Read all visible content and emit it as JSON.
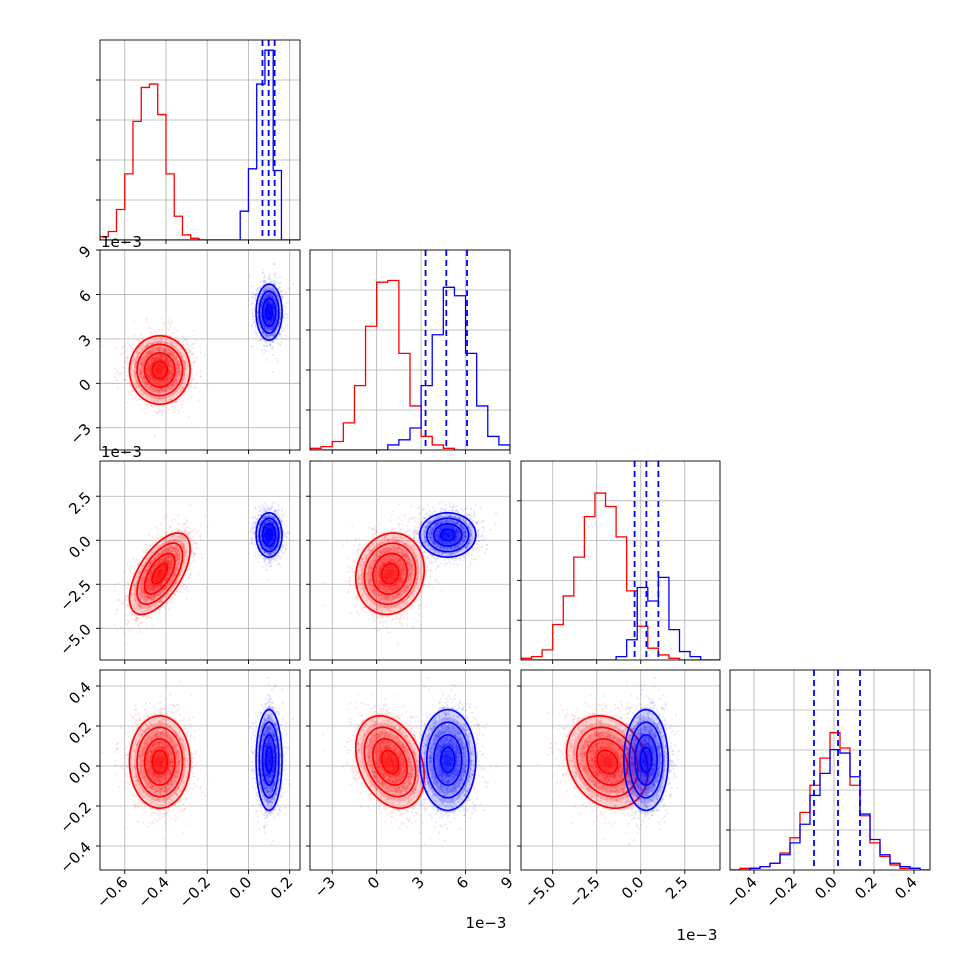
{
  "chart_data": {
    "type": "corner",
    "parameters": 4,
    "grid": true,
    "series_colors": {
      "A": "#ff0000",
      "B": "#0000ff"
    },
    "quantile_line_color": "#0000ff",
    "axes": [
      {
        "range": [
          -0.72,
          0.25
        ],
        "ticks": [
          -0.6,
          -0.4,
          -0.2,
          0.0,
          0.2
        ],
        "tick_labels": [
          "−0.6",
          "−0.4",
          "−0.2",
          "0.0",
          "0.2"
        ],
        "offset_label": ""
      },
      {
        "range": [
          -0.0045,
          0.009
        ],
        "ticks": [
          -0.003,
          0.0,
          0.003,
          0.006,
          0.009
        ],
        "tick_labels": [
          "−3",
          "0",
          "3",
          "6",
          "9"
        ],
        "offset_label": "1e−3"
      },
      {
        "range": [
          -0.0068,
          0.0045
        ],
        "ticks": [
          -0.005,
          -0.0025,
          0.0,
          0.0025
        ],
        "tick_labels": [
          "−5.0",
          "−2.5",
          "0.0",
          "2.5"
        ],
        "offset_label": "1e−3"
      },
      {
        "range": [
          -0.52,
          0.48
        ],
        "ticks": [
          -0.4,
          -0.2,
          0.0,
          0.2,
          0.4
        ],
        "tick_labels": [
          "−0.4",
          "−0.2",
          "0.0",
          "0.2",
          "0.4"
        ],
        "offset_label": ""
      }
    ],
    "distributions": {
      "A": {
        "mean": [
          -0.43,
          0.0009,
          -0.0019,
          0.02
        ],
        "sd": [
          0.07,
          0.0011,
          0.0011,
          0.11
        ],
        "corr": [
          [
            1,
            0,
            0.6,
            0
          ],
          [
            0,
            1,
            0.1,
            -0.3
          ],
          [
            0.6,
            0.1,
            1,
            -0.2
          ],
          [
            0,
            -0.3,
            -0.2,
            1
          ]
        ]
      },
      "B": {
        "mean": [
          0.1,
          0.0048,
          0.0003,
          0.03
        ],
        "sd": [
          0.03,
          0.0009,
          0.0006,
          0.12
        ],
        "corr": [
          [
            1,
            0,
            0,
            0
          ],
          [
            0,
            1,
            0,
            0
          ],
          [
            0,
            0,
            1,
            0
          ],
          [
            0,
            0,
            0,
            1
          ]
        ]
      }
    },
    "histograms": [
      {
        "bin_edges": [
          -0.72,
          -0.68,
          -0.64,
          -0.6,
          -0.56,
          -0.52,
          -0.48,
          -0.44,
          -0.4,
          -0.36,
          -0.32,
          -0.28,
          -0.24,
          -0.2,
          -0.16,
          -0.12,
          -0.08,
          -0.04,
          0.0,
          0.04,
          0.08,
          0.12,
          0.16,
          0.2,
          0.25
        ],
        "A": [
          0.02,
          0.05,
          0.18,
          0.39,
          0.7,
          0.9,
          0.92,
          0.74,
          0.39,
          0.14,
          0.03,
          0.01,
          0,
          0,
          0,
          0,
          0,
          0,
          0,
          0,
          0,
          0,
          0,
          0
        ],
        "B": [
          0,
          0,
          0,
          0,
          0,
          0,
          0,
          0,
          0,
          0,
          0,
          0,
          0,
          0,
          0,
          0,
          0,
          0.17,
          0.42,
          0.92,
          1.12,
          0.41,
          0,
          0
        ],
        "quantiles": [
          0.068,
          0.098,
          0.127
        ]
      },
      {
        "bin_edges": [
          -0.0045,
          -0.00375,
          -0.003,
          -0.00225,
          -0.0015,
          -0.00075,
          0.0,
          0.00075,
          0.0015,
          0.00225,
          0.003,
          0.00375,
          0.0045,
          0.00525,
          0.006,
          0.00675,
          0.0075,
          0.00825,
          0.009
        ],
        "A": [
          0.01,
          0.02,
          0.05,
          0.16,
          0.38,
          0.73,
          0.99,
          1.0,
          0.57,
          0.26,
          0.08,
          0.03,
          0.01,
          0,
          0,
          0,
          0,
          0
        ],
        "B": [
          0,
          0,
          0,
          0,
          0,
          0,
          0,
          0.03,
          0.06,
          0.13,
          0.38,
          0.68,
          0.96,
          0.91,
          0.57,
          0.26,
          0.08,
          0.03
        ],
        "quantiles": [
          0.0033,
          0.0047,
          0.0061
        ]
      },
      {
        "bin_edges": [
          -0.0068,
          -0.0062,
          -0.0056,
          -0.005,
          -0.0044,
          -0.0038,
          -0.0032,
          -0.0026,
          -0.002,
          -0.0014,
          -0.0008,
          -0.0002,
          0.0004,
          0.001,
          0.0016,
          0.0022,
          0.0028,
          0.0034,
          0.0045
        ],
        "A": [
          0.01,
          0.02,
          0.06,
          0.21,
          0.38,
          0.61,
          0.85,
          0.99,
          0.91,
          0.73,
          0.41,
          0.2,
          0.07,
          0.03,
          0.01,
          0,
          0,
          0
        ],
        "B": [
          0,
          0,
          0,
          0,
          0,
          0,
          0,
          0,
          0,
          0.02,
          0.12,
          0.43,
          0.35,
          0.49,
          0.18,
          0.05,
          0.02,
          0
        ],
        "quantiles": [
          -0.00035,
          0.00032,
          0.001
        ]
      },
      {
        "bin_edges": [
          -0.52,
          -0.47,
          -0.42,
          -0.37,
          -0.32,
          -0.27,
          -0.22,
          -0.17,
          -0.12,
          -0.07,
          -0.02,
          0.03,
          0.08,
          0.13,
          0.18,
          0.23,
          0.28,
          0.33,
          0.38,
          0.43,
          0.48
        ],
        "A": [
          0,
          0.01,
          0.01,
          0.02,
          0.04,
          0.1,
          0.19,
          0.34,
          0.5,
          0.66,
          0.81,
          0.72,
          0.5,
          0.32,
          0.16,
          0.08,
          0.03,
          0.01,
          0.01,
          0
        ],
        "B": [
          0,
          0,
          0.01,
          0.02,
          0.04,
          0.09,
          0.16,
          0.27,
          0.44,
          0.57,
          0.71,
          0.69,
          0.55,
          0.33,
          0.18,
          0.09,
          0.04,
          0.02,
          0.01,
          0
        ],
        "quantiles": [
          -0.1,
          0.02,
          0.13
        ]
      }
    ],
    "contour_levels_sigma": [
      0.5,
      1.0,
      1.5,
      2.0
    ]
  }
}
